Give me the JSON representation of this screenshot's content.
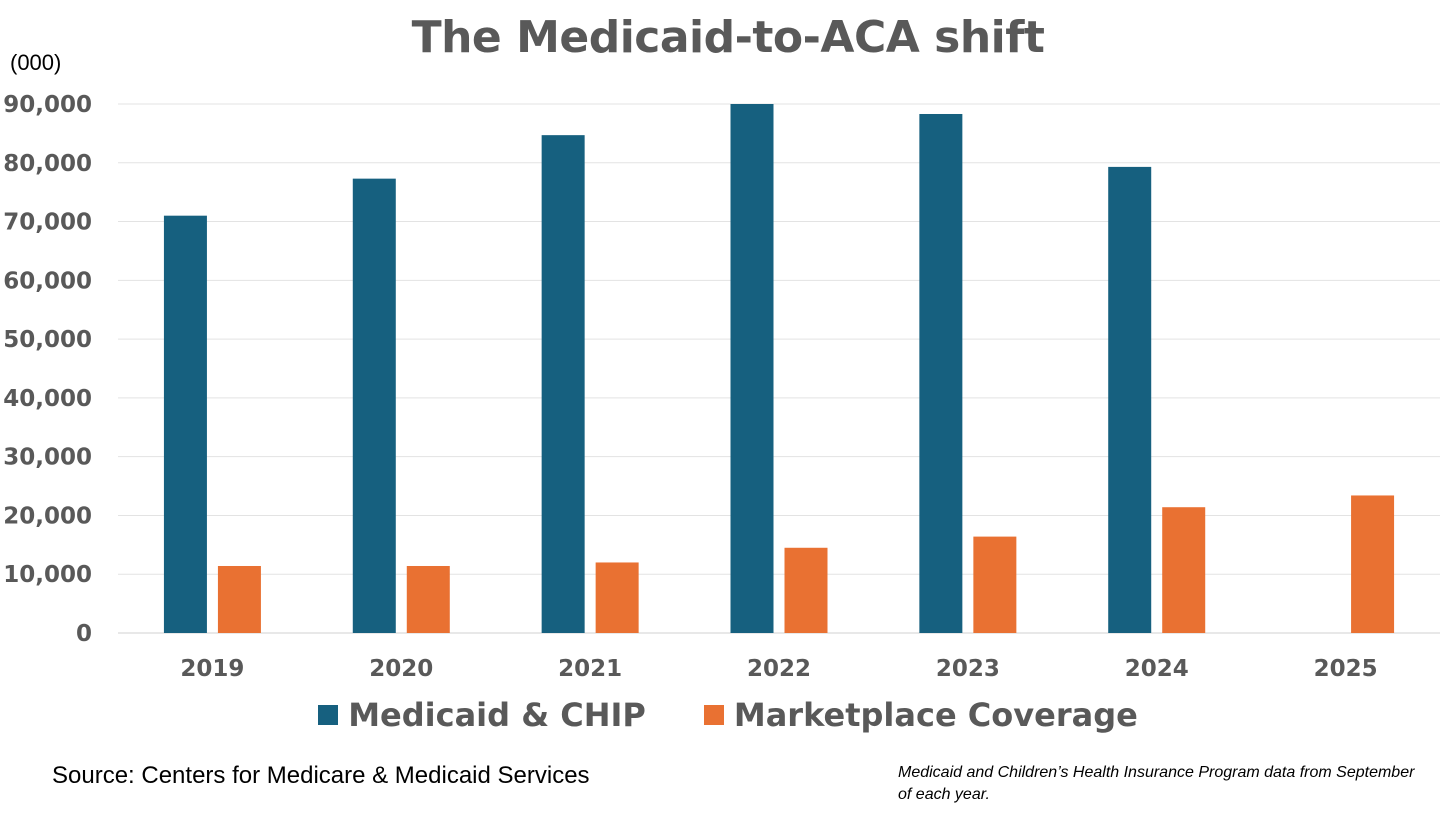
{
  "chart_data": {
    "type": "bar",
    "title": "The Medicaid-to-ACA shift",
    "unit_label": "(000)",
    "xlabel": "",
    "ylabel": "",
    "categories": [
      "2019",
      "2020",
      "2021",
      "2022",
      "2023",
      "2024",
      "2025"
    ],
    "series": [
      {
        "name": "Medicaid & CHIP",
        "color": "#16607f",
        "values": [
          71000,
          77300,
          84700,
          90000,
          88300,
          79300,
          null
        ]
      },
      {
        "name": "Marketplace Coverage",
        "color": "#e97132",
        "values": [
          11400,
          11400,
          12000,
          14500,
          16400,
          21400,
          23400
        ]
      }
    ],
    "ylim": [
      0,
      90000
    ],
    "yticks": [
      0,
      10000,
      20000,
      30000,
      40000,
      50000,
      60000,
      70000,
      80000,
      90000
    ],
    "ytick_labels": [
      "0",
      "10,000",
      "20,000",
      "30,000",
      "40,000",
      "50,000",
      "60,000",
      "70,000",
      "80,000",
      "90,000"
    ],
    "grid": true,
    "legend_position": "bottom"
  },
  "source": "Source: Centers for Medicare & Medicaid Services",
  "footnote": "Medicaid and Children’s Health Insurance Program data from September of each year."
}
